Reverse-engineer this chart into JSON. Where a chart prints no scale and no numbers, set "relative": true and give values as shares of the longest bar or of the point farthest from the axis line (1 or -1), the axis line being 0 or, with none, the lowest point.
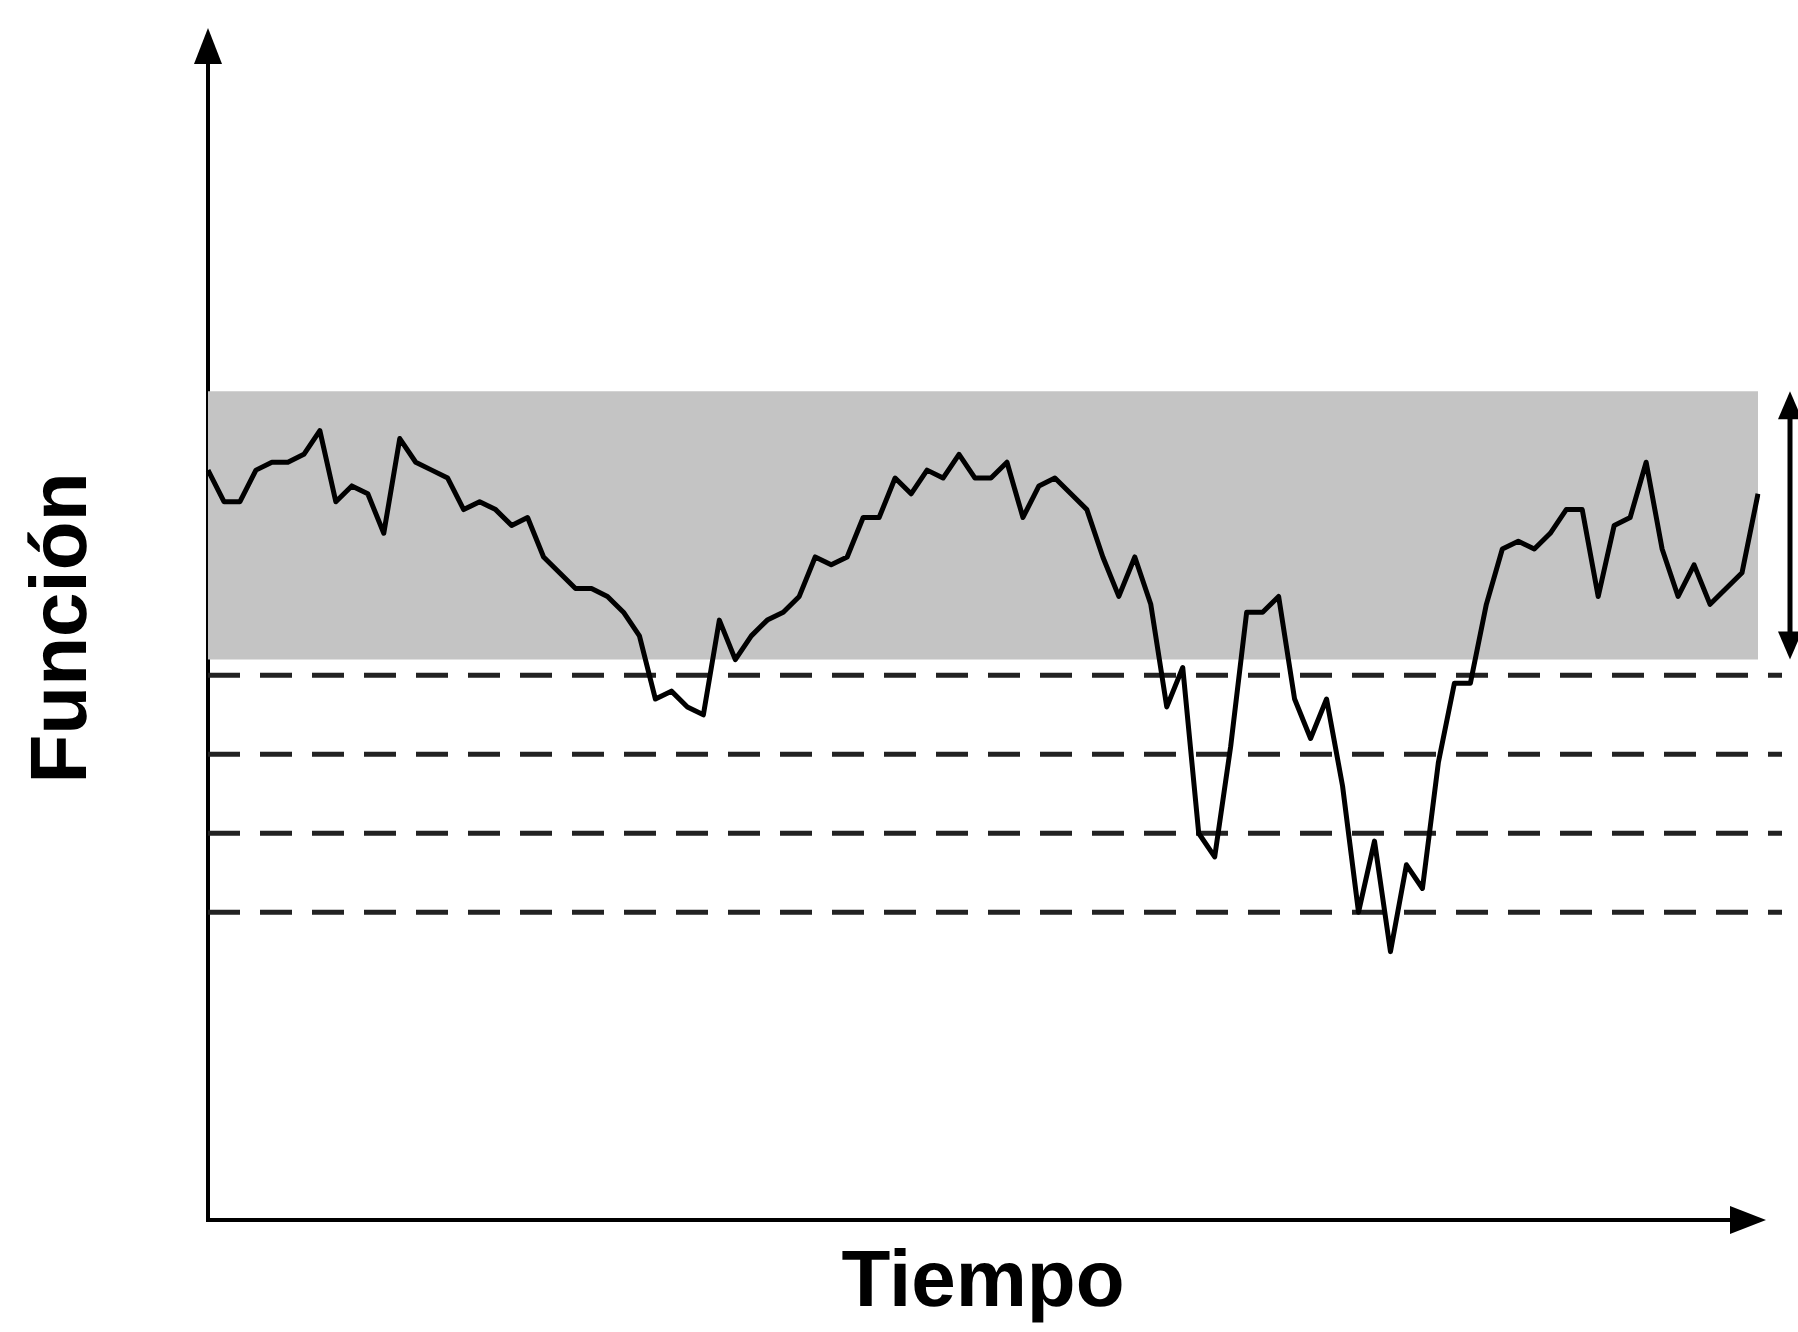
{
  "chart_data": {
    "type": "line",
    "xlabel": "Tiempo",
    "ylabel": "Función",
    "relative": true,
    "categories": [
      null,
      null,
      null,
      null,
      null,
      null,
      null,
      null,
      null,
      null,
      null,
      null,
      null,
      null,
      null,
      null,
      null,
      null,
      null,
      null,
      null,
      null,
      null,
      null,
      null,
      null,
      null,
      null,
      null,
      null,
      null,
      null,
      null,
      null,
      null,
      null,
      null,
      null,
      null,
      null,
      null,
      null,
      null,
      null,
      null,
      null,
      null,
      null,
      null,
      null,
      null,
      null,
      null,
      null,
      null,
      null,
      null,
      null,
      null,
      null,
      null,
      null,
      null,
      null,
      null,
      null,
      null,
      null,
      null,
      null,
      null,
      null,
      null,
      null,
      null,
      null,
      null,
      null,
      null,
      null,
      null,
      null,
      null,
      null,
      null,
      null,
      null,
      null,
      null,
      null,
      null,
      null,
      null,
      null,
      null,
      null,
      null,
      null
    ],
    "series": [
      {
        "color": "#000000",
        "values": [
          0.95,
          0.91,
          0.91,
          0.95,
          0.96,
          0.96,
          0.97,
          1,
          0.91,
          0.93,
          0.92,
          0.87,
          0.99,
          0.96,
          0.95,
          0.94,
          0.9,
          0.91,
          0.9,
          0.88,
          0.89,
          0.84,
          0.82,
          0.8,
          0.8,
          0.79,
          0.77,
          0.74,
          0.66,
          0.67,
          0.65,
          0.64,
          0.76,
          0.71,
          0.74,
          0.76,
          0.77,
          0.79,
          0.84,
          0.83,
          0.84,
          0.89,
          0.89,
          0.94,
          0.92,
          0.95,
          0.94,
          0.97,
          0.94,
          0.94,
          0.96,
          0.89,
          0.93,
          0.94,
          0.92,
          0.9,
          0.84,
          0.79,
          0.84,
          0.78,
          0.65,
          0.7,
          0.49,
          0.46,
          0.6,
          0.77,
          0.77,
          0.79,
          0.66,
          0.61,
          0.66,
          0.55,
          0.39,
          0.48,
          0.34,
          0.45,
          0.42,
          0.58,
          0.68,
          0.68,
          0.78,
          0.85,
          0.86,
          0.85,
          0.87,
          0.9,
          0.9,
          0.79,
          0.88,
          0.89,
          0.96,
          0.85,
          0.79,
          0.83,
          0.78,
          0.8,
          0.82,
          0.92
        ]
      }
    ],
    "bands": [
      {
        "axis": "y",
        "from": 0.71,
        "to": 1.05,
        "color": "#c4c4c4"
      }
    ],
    "ref_lines": [
      {
        "axis": "y",
        "value": 0.69,
        "color": "#222222",
        "line_style": "dashed"
      },
      {
        "axis": "y",
        "value": 0.59,
        "color": "#222222",
        "line_style": "dashed"
      },
      {
        "axis": "y",
        "value": 0.49,
        "color": "#222222",
        "line_style": "dashed"
      },
      {
        "axis": "y",
        "value": 0.39,
        "color": "#222222",
        "line_style": "dashed"
      }
    ]
  }
}
